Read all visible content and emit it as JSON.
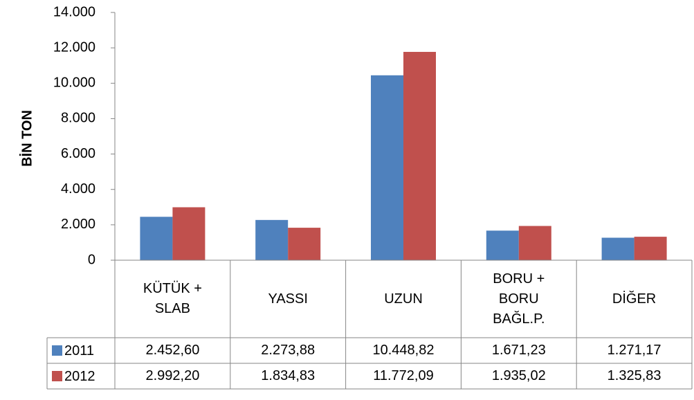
{
  "chart_data": {
    "type": "bar",
    "y_label": "BİN TON",
    "categories": [
      "KÜTÜK + SLAB",
      "YASSI",
      "UZUN",
      "BORU + BORU BAĞL.P.",
      "DİĞER"
    ],
    "series": [
      {
        "name": "2011",
        "color": "#4f81bd",
        "values": [
          2452.6,
          2273.88,
          10448.82,
          1671.23,
          1271.17
        ],
        "value_labels": [
          "2.452,60",
          "2.273,88",
          "10.448,82",
          "1.671,23",
          "1.271,17"
        ]
      },
      {
        "name": "2012",
        "color": "#c0504d",
        "values": [
          2992.2,
          1834.83,
          11772.09,
          1935.02,
          1325.83
        ],
        "value_labels": [
          "2.992,20",
          "1.834,83",
          "11.772,09",
          "1.935,02",
          "1.325,83"
        ]
      }
    ],
    "ylim": [
      0,
      14000
    ],
    "yticks": [
      0,
      {
        "value": 2000,
        "label": "2.000"
      },
      {
        "value": 4000,
        "label": "4.000"
      },
      {
        "value": 6000,
        "label": "6.000"
      },
      {
        "value": 8000,
        "label": "8.000"
      },
      {
        "value": 10000,
        "label": "10.000"
      },
      {
        "value": 12000,
        "label": "12.000"
      },
      {
        "value": 14000,
        "label": "14.000"
      }
    ],
    "grid": false
  }
}
